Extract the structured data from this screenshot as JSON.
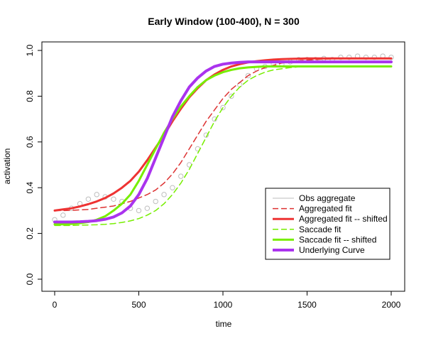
{
  "chart_data": {
    "type": "line",
    "title": "Early Window (100-400), N = 300",
    "xlabel": "time",
    "ylabel": "activation",
    "xlim": [
      0,
      2000
    ],
    "ylim": [
      0.0,
      1.0
    ],
    "xticks": [
      0,
      500,
      1000,
      1500,
      2000
    ],
    "yticks": [
      0.0,
      0.2,
      0.4,
      0.6,
      0.8,
      1.0
    ],
    "xtick_labels": [
      "0",
      "500",
      "1000",
      "1500",
      "2000"
    ],
    "ytick_labels": [
      "0.0",
      "0.2",
      "0.4",
      "0.6",
      "0.8",
      "1.0"
    ],
    "grid": false,
    "legend_position": "bottom-right",
    "series": [
      {
        "name": "Obs aggregate",
        "style": "points",
        "color": "#bebebe",
        "x": [
          0,
          50,
          100,
          150,
          200,
          250,
          300,
          350,
          400,
          450,
          500,
          550,
          600,
          650,
          700,
          750,
          800,
          850,
          900,
          950,
          1000,
          1050,
          1100,
          1150,
          1200,
          1250,
          1300,
          1350,
          1400,
          1450,
          1500,
          1550,
          1600,
          1650,
          1700,
          1750,
          1800,
          1850,
          1900,
          1950,
          2000
        ],
        "y": [
          0.26,
          0.28,
          0.31,
          0.33,
          0.35,
          0.37,
          0.36,
          0.35,
          0.34,
          0.31,
          0.3,
          0.31,
          0.34,
          0.37,
          0.4,
          0.45,
          0.5,
          0.57,
          0.63,
          0.7,
          0.75,
          0.8,
          0.85,
          0.89,
          0.92,
          0.93,
          0.94,
          0.94,
          0.95,
          0.96,
          0.96,
          0.96,
          0.965,
          0.96,
          0.97,
          0.97,
          0.975,
          0.97,
          0.97,
          0.975,
          0.97
        ]
      },
      {
        "name": "Aggregated fit",
        "style": "dashed",
        "color": "#dd3333",
        "x": [
          0,
          50,
          100,
          150,
          200,
          250,
          300,
          350,
          400,
          450,
          500,
          550,
          600,
          650,
          700,
          750,
          800,
          850,
          900,
          950,
          1000,
          1050,
          1100,
          1150,
          1200,
          1250,
          1300,
          1350,
          1400,
          1450,
          1500,
          1550,
          1600,
          1650,
          1700,
          1750,
          1800,
          1850,
          1900,
          1950,
          2000
        ],
        "y": [
          0.3,
          0.3,
          0.301,
          0.303,
          0.305,
          0.31,
          0.315,
          0.32,
          0.33,
          0.34,
          0.355,
          0.37,
          0.39,
          0.42,
          0.46,
          0.51,
          0.57,
          0.63,
          0.69,
          0.74,
          0.79,
          0.83,
          0.86,
          0.89,
          0.91,
          0.925,
          0.935,
          0.945,
          0.95,
          0.955,
          0.958,
          0.96,
          0.962,
          0.963,
          0.964,
          0.965,
          0.965,
          0.965,
          0.965,
          0.965,
          0.965
        ]
      },
      {
        "name": "Aggregated fit -- shifted",
        "style": "solid",
        "color": "#ee3333",
        "x": [
          0,
          50,
          100,
          150,
          200,
          250,
          300,
          350,
          400,
          450,
          500,
          550,
          600,
          650,
          700,
          750,
          800,
          850,
          900,
          950,
          1000,
          1050,
          1100,
          1150,
          1200,
          1250,
          1300,
          1350,
          1400,
          1450,
          1500,
          1550,
          1600,
          1650,
          1700,
          1750,
          1800,
          1850,
          1900,
          1950,
          2000
        ],
        "y": [
          0.3,
          0.305,
          0.31,
          0.318,
          0.328,
          0.34,
          0.355,
          0.375,
          0.4,
          0.43,
          0.47,
          0.52,
          0.575,
          0.63,
          0.69,
          0.745,
          0.795,
          0.835,
          0.87,
          0.895,
          0.915,
          0.93,
          0.94,
          0.948,
          0.953,
          0.957,
          0.96,
          0.962,
          0.963,
          0.964,
          0.965,
          0.965,
          0.965,
          0.965,
          0.965,
          0.965,
          0.965,
          0.965,
          0.965,
          0.965,
          0.965
        ]
      },
      {
        "name": "Saccade fit",
        "style": "dashed",
        "color": "#77ee00",
        "x": [
          0,
          50,
          100,
          150,
          200,
          250,
          300,
          350,
          400,
          450,
          500,
          550,
          600,
          650,
          700,
          750,
          800,
          850,
          900,
          950,
          1000,
          1050,
          1100,
          1150,
          1200,
          1250,
          1300,
          1350,
          1400,
          1450,
          1500,
          1550,
          1600,
          1650,
          1700,
          1750,
          1800,
          1850,
          1900,
          1950,
          2000
        ],
        "y": [
          0.235,
          0.235,
          0.235,
          0.236,
          0.237,
          0.238,
          0.24,
          0.243,
          0.248,
          0.255,
          0.265,
          0.28,
          0.3,
          0.33,
          0.37,
          0.42,
          0.48,
          0.55,
          0.62,
          0.69,
          0.75,
          0.8,
          0.84,
          0.87,
          0.89,
          0.905,
          0.915,
          0.92,
          0.925,
          0.928,
          0.93,
          0.93,
          0.93,
          0.93,
          0.93,
          0.93,
          0.93,
          0.93,
          0.93,
          0.93,
          0.93
        ]
      },
      {
        "name": "Saccade fit -- shifted",
        "style": "solid",
        "color": "#77ee00",
        "x": [
          0,
          50,
          100,
          150,
          200,
          250,
          300,
          350,
          400,
          450,
          500,
          550,
          600,
          650,
          700,
          750,
          800,
          850,
          900,
          950,
          1000,
          1050,
          1100,
          1150,
          1200,
          1250,
          1300,
          1350,
          1400,
          1450,
          1500,
          1550,
          1600,
          1650,
          1700,
          1750,
          1800,
          1850,
          1900,
          1950,
          2000
        ],
        "y": [
          0.24,
          0.24,
          0.242,
          0.245,
          0.25,
          0.26,
          0.275,
          0.3,
          0.33,
          0.37,
          0.43,
          0.5,
          0.57,
          0.64,
          0.7,
          0.755,
          0.8,
          0.84,
          0.87,
          0.89,
          0.905,
          0.915,
          0.922,
          0.926,
          0.928,
          0.93,
          0.93,
          0.93,
          0.93,
          0.93,
          0.93,
          0.93,
          0.93,
          0.93,
          0.93,
          0.93,
          0.93,
          0.93,
          0.93,
          0.93,
          0.93
        ]
      },
      {
        "name": "Underlying Curve",
        "style": "solid",
        "color": "#aa33ee",
        "x": [
          0,
          50,
          100,
          150,
          200,
          250,
          300,
          350,
          400,
          450,
          500,
          550,
          600,
          650,
          700,
          750,
          800,
          850,
          900,
          950,
          1000,
          1050,
          1100,
          1150,
          1200,
          1250,
          1300,
          1350,
          1400,
          1450,
          1500,
          1550,
          1600,
          1650,
          1700,
          1750,
          1800,
          1850,
          1900,
          1950,
          2000
        ],
        "y": [
          0.25,
          0.25,
          0.25,
          0.251,
          0.253,
          0.256,
          0.262,
          0.272,
          0.29,
          0.32,
          0.37,
          0.44,
          0.53,
          0.62,
          0.71,
          0.78,
          0.84,
          0.88,
          0.91,
          0.93,
          0.94,
          0.945,
          0.948,
          0.95,
          0.95,
          0.95,
          0.95,
          0.95,
          0.95,
          0.95,
          0.95,
          0.95,
          0.95,
          0.95,
          0.95,
          0.95,
          0.95,
          0.95,
          0.95,
          0.95,
          0.95
        ]
      }
    ]
  }
}
